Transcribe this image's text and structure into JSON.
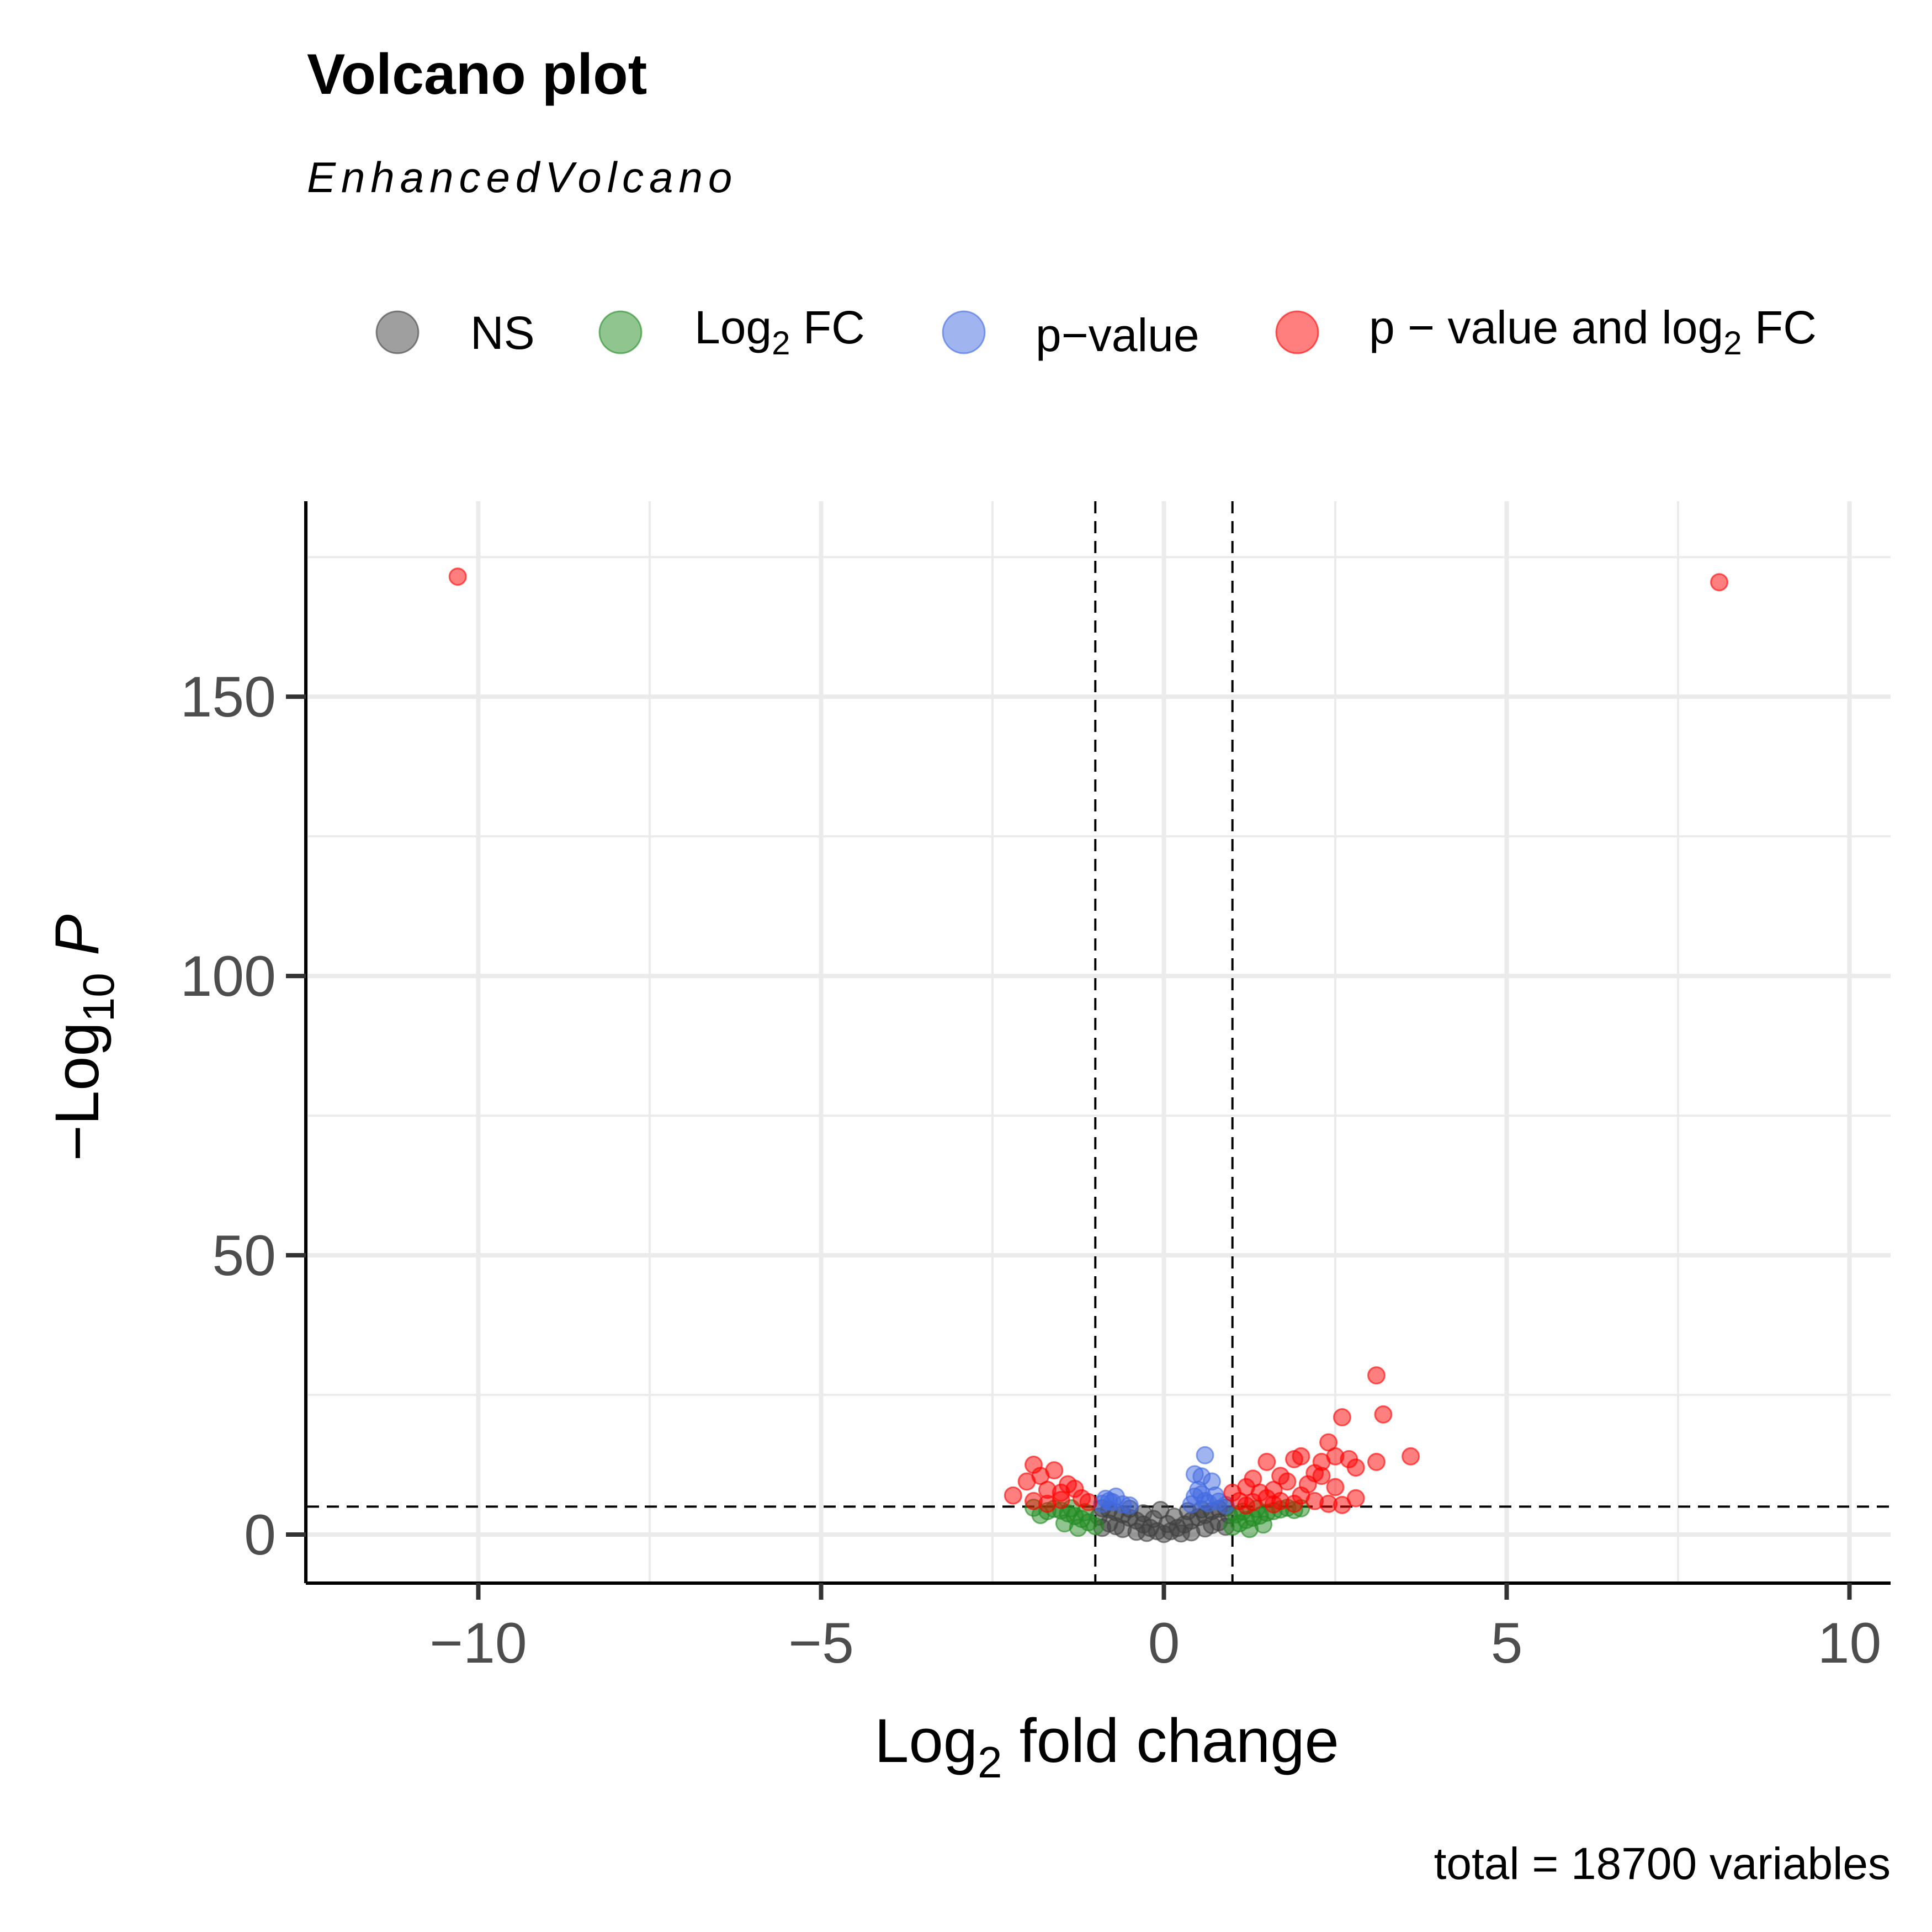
{
  "title": "Volcano plot",
  "subtitle": "EnhancedVolcano",
  "caption": "total = 18700 variables",
  "legend": [
    {
      "key": "NS",
      "text": "NS",
      "sub": "",
      "after": "",
      "color": "#404040"
    },
    {
      "key": "FC",
      "text": "Log",
      "sub": "2",
      "after": " FC",
      "color": "#228b22"
    },
    {
      "key": "P",
      "text": "p−value",
      "sub": "",
      "after": "",
      "color": "#4169e1"
    },
    {
      "key": "P_FC",
      "text": "p − value and log",
      "sub": "2",
      "after": " FC",
      "color": "#ff0000"
    }
  ],
  "chart_data": {
    "type": "scatter",
    "title": "Volcano plot",
    "subtitle": "EnhancedVolcano",
    "xlabel": {
      "pre": "Log",
      "sub": "2",
      "post": " fold change"
    },
    "ylabel": {
      "pre": "−Log",
      "sub": "10",
      "post": " P"
    },
    "xlim": [
      -12.5,
      10.6
    ],
    "ylim": [
      -8.5,
      185
    ],
    "xticks": [
      -10,
      -5,
      0,
      5,
      10
    ],
    "xtick_labels": [
      "−10",
      "−5",
      "0",
      "5",
      "10"
    ],
    "yticks": [
      0,
      50,
      100,
      150
    ],
    "ytick_labels": [
      "0",
      "50",
      "100",
      "150"
    ],
    "fc_cutoff": 1,
    "p_cutoff_neglog10": 5,
    "grid": true,
    "legend_position": "top",
    "series": [
      {
        "name": "NS",
        "color": "#404040",
        "points": [
          [
            0,
            0.1
          ],
          [
            -0.1,
            0.6
          ],
          [
            0.1,
            0.6
          ],
          [
            -0.2,
            1.2
          ],
          [
            0.2,
            1.2
          ],
          [
            -0.3,
            1.8
          ],
          [
            0.3,
            1.8
          ],
          [
            -0.4,
            2.5
          ],
          [
            0.4,
            2.5
          ],
          [
            -0.5,
            3.0
          ],
          [
            0.5,
            3.1
          ],
          [
            -0.6,
            3.6
          ],
          [
            0.6,
            3.5
          ],
          [
            -0.7,
            4.0
          ],
          [
            0.7,
            4.2
          ],
          [
            -0.8,
            4.5
          ],
          [
            0.8,
            4.6
          ],
          [
            -0.9,
            4.7
          ],
          [
            0.9,
            4.8
          ],
          [
            -0.95,
            3.2
          ],
          [
            0.95,
            3.5
          ],
          [
            -0.8,
            2.0
          ],
          [
            0.8,
            2.2
          ],
          [
            -0.6,
            1.0
          ],
          [
            0.6,
            1.1
          ],
          [
            -0.4,
            0.5
          ],
          [
            0.4,
            0.4
          ],
          [
            -0.15,
            2.8
          ],
          [
            0.15,
            3.2
          ],
          [
            -0.3,
            3.8
          ],
          [
            0.35,
            4.2
          ],
          [
            -0.5,
            4.6
          ],
          [
            0.55,
            4.5
          ],
          [
            -0.7,
            1.5
          ],
          [
            0.7,
            1.7
          ],
          [
            -0.9,
            1.2
          ],
          [
            0.9,
            1.4
          ],
          [
            0.05,
            1.9
          ],
          [
            -0.05,
            4.4
          ],
          [
            0.25,
            0.2
          ],
          [
            -0.25,
            0.3
          ]
        ]
      },
      {
        "name": "Log2 FC",
        "color": "#228b22",
        "points": [
          [
            -1.0,
            1.5
          ],
          [
            -1.1,
            2.2
          ],
          [
            -1.2,
            2.8
          ],
          [
            -1.3,
            3.3
          ],
          [
            -1.4,
            3.8
          ],
          [
            -1.5,
            4.3
          ],
          [
            -1.6,
            4.6
          ],
          [
            -1.7,
            4.2
          ],
          [
            -1.8,
            3.5
          ],
          [
            -1.9,
            4.8
          ],
          [
            -1.25,
            1.2
          ],
          [
            -1.45,
            2.0
          ],
          [
            -1.15,
            4.0
          ],
          [
            -1.35,
            4.7
          ],
          [
            1.0,
            1.4
          ],
          [
            1.1,
            2.0
          ],
          [
            1.2,
            2.6
          ],
          [
            1.3,
            3.0
          ],
          [
            1.4,
            3.4
          ],
          [
            1.5,
            3.9
          ],
          [
            1.6,
            4.2
          ],
          [
            1.7,
            4.5
          ],
          [
            1.8,
            4.8
          ],
          [
            1.9,
            4.4
          ],
          [
            2.0,
            4.7
          ],
          [
            1.15,
            4.1
          ],
          [
            1.25,
            1.0
          ],
          [
            1.45,
            1.8
          ],
          [
            1.35,
            4.6
          ],
          [
            1.05,
            3.6
          ]
        ]
      },
      {
        "name": "p−value",
        "color": "#4169e1",
        "points": [
          [
            -0.9,
            5.5
          ],
          [
            -0.8,
            6.0
          ],
          [
            -0.7,
            6.8
          ],
          [
            -0.6,
            5.4
          ],
          [
            -0.5,
            5.2
          ],
          [
            -0.75,
            5.8
          ],
          [
            -0.85,
            6.4
          ],
          [
            0.4,
            5.4
          ],
          [
            0.45,
            6.8
          ],
          [
            0.5,
            8.0
          ],
          [
            0.55,
            7.2
          ],
          [
            0.6,
            6.0
          ],
          [
            0.65,
            5.6
          ],
          [
            0.7,
            9.5
          ],
          [
            0.55,
            10.4
          ],
          [
            0.45,
            10.8
          ],
          [
            0.6,
            14.2
          ],
          [
            0.75,
            7.0
          ],
          [
            0.8,
            5.9
          ],
          [
            0.9,
            5.3
          ]
        ]
      },
      {
        "name": "p − value and log2 FC",
        "color": "#ff0000",
        "points": [
          [
            -10.3,
            171.5
          ],
          [
            8.1,
            170.5
          ],
          [
            -2.2,
            7.0
          ],
          [
            -2.0,
            9.5
          ],
          [
            -1.9,
            12.5
          ],
          [
            -1.8,
            10.5
          ],
          [
            -1.7,
            8.0
          ],
          [
            -1.6,
            11.5
          ],
          [
            -1.5,
            7.5
          ],
          [
            -1.4,
            9.0
          ],
          [
            -1.3,
            8.2
          ],
          [
            -1.2,
            6.5
          ],
          [
            -1.1,
            5.8
          ],
          [
            -1.9,
            6.0
          ],
          [
            -1.7,
            5.5
          ],
          [
            -1.5,
            6.2
          ],
          [
            3.1,
            28.5
          ],
          [
            3.2,
            21.5
          ],
          [
            2.6,
            21.0
          ],
          [
            2.4,
            16.5
          ],
          [
            3.6,
            14.0
          ],
          [
            3.1,
            13.0
          ],
          [
            2.7,
            13.5
          ],
          [
            2.8,
            12.0
          ],
          [
            2.5,
            14.0
          ],
          [
            2.3,
            13.0
          ],
          [
            2.2,
            11.0
          ],
          [
            2.0,
            14.0
          ],
          [
            1.9,
            13.5
          ],
          [
            1.5,
            13.0
          ],
          [
            1.7,
            10.5
          ],
          [
            1.3,
            10.0
          ],
          [
            1.2,
            8.5
          ],
          [
            1.4,
            7.5
          ],
          [
            1.6,
            8.0
          ],
          [
            1.8,
            9.5
          ],
          [
            2.1,
            9.0
          ],
          [
            2.3,
            10.5
          ],
          [
            1.1,
            6.0
          ],
          [
            1.3,
            5.8
          ],
          [
            1.5,
            6.5
          ],
          [
            1.7,
            6.0
          ],
          [
            1.9,
            5.5
          ],
          [
            2.0,
            7.0
          ],
          [
            2.2,
            6.0
          ],
          [
            2.4,
            5.5
          ],
          [
            2.5,
            8.5
          ],
          [
            2.6,
            5.3
          ],
          [
            2.8,
            6.5
          ],
          [
            1.2,
            5.2
          ],
          [
            1.0,
            7.5
          ],
          [
            1.6,
            5.4
          ]
        ]
      }
    ]
  }
}
